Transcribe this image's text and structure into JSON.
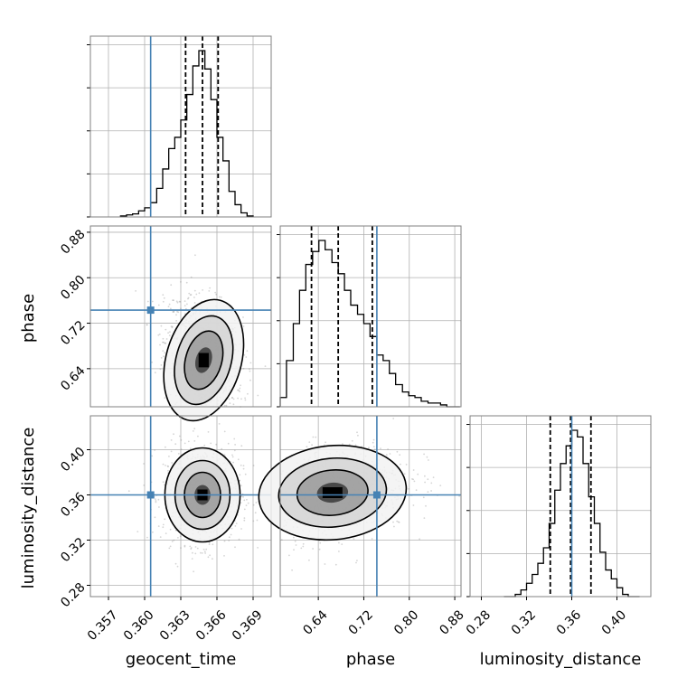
{
  "chart_data": {
    "type": "corner",
    "parameters": [
      "geocent_time",
      "phase",
      "luminosity_distance"
    ],
    "truths": {
      "geocent_time": 0.3605,
      "phase": 0.743,
      "luminosity_distance": 0.36
    },
    "quantiles": {
      "geocent_time": [
        0.3634,
        0.3648,
        0.3661
      ],
      "phase": [
        0.628,
        0.675,
        0.735
      ],
      "luminosity_distance": [
        0.341,
        0.359,
        0.377
      ]
    },
    "colors": {
      "truth": "#4682b4",
      "hist": "#000000",
      "quantile": "#000000",
      "grid": "#b0b0b0"
    },
    "grid": true,
    "axes": {
      "geocent_time": {
        "xlim": [
          0.3555,
          0.3705
        ],
        "ticks": [
          0.357,
          0.36,
          0.363,
          0.366,
          0.369
        ],
        "tick_labels": [
          "0.357",
          "0.360",
          "0.363",
          "0.366",
          "0.369"
        ],
        "label": "geocent_time"
      },
      "phase": {
        "xlim": [
          0.573,
          0.891
        ],
        "ticks": [
          0.64,
          0.72,
          0.8,
          0.88
        ],
        "tick_labels": [
          "0.64",
          "0.72",
          "0.80",
          "0.88"
        ],
        "label": "phase"
      },
      "luminosity_distance": {
        "xlim": [
          0.27,
          0.43
        ],
        "ticks": [
          0.28,
          0.32,
          0.36,
          0.4
        ],
        "tick_labels": [
          "0.28",
          "0.32",
          "0.36",
          "0.40"
        ],
        "label": "luminosity_distance"
      }
    },
    "histograms": {
      "geocent_time": {
        "bin_edges": [
          0.358,
          0.3585,
          0.359,
          0.3595,
          0.36,
          0.3605,
          0.361,
          0.3615,
          0.362,
          0.3625,
          0.363,
          0.3635,
          0.364,
          0.3645,
          0.365,
          0.3655,
          0.366,
          0.3665,
          0.367,
          0.3675,
          0.368,
          0.3685,
          0.369
        ],
        "counts": [
          1,
          2,
          3,
          6,
          9,
          14,
          28,
          47,
          67,
          78,
          95,
          120,
          148,
          163,
          145,
          115,
          78,
          55,
          25,
          12,
          4,
          1
        ]
      },
      "phase": {
        "bin_edges": [
          0.573,
          0.584,
          0.596,
          0.607,
          0.618,
          0.63,
          0.641,
          0.652,
          0.664,
          0.675,
          0.686,
          0.697,
          0.709,
          0.72,
          0.731,
          0.743,
          0.754,
          0.765,
          0.776,
          0.788,
          0.799,
          0.81,
          0.821,
          0.833,
          0.844,
          0.855,
          0.866,
          0.878,
          0.889
        ],
        "counts": [
          5,
          25,
          45,
          63,
          77,
          84,
          90,
          85,
          78,
          72,
          63,
          55,
          50,
          45,
          38,
          28,
          25,
          18,
          12,
          8,
          6,
          5,
          3,
          2,
          2,
          1,
          0,
          0
        ]
      },
      "luminosity_distance": {
        "bin_edges": [
          0.3,
          0.305,
          0.31,
          0.315,
          0.32,
          0.325,
          0.33,
          0.335,
          0.34,
          0.345,
          0.35,
          0.355,
          0.36,
          0.365,
          0.37,
          0.375,
          0.38,
          0.385,
          0.39,
          0.395,
          0.4,
          0.405,
          0.41,
          0.415,
          0.42
        ],
        "counts": [
          0,
          0,
          1,
          3,
          6,
          10,
          15,
          22,
          33,
          48,
          60,
          68,
          75,
          72,
          60,
          45,
          33,
          20,
          12,
          8,
          4,
          1,
          0,
          0
        ]
      }
    },
    "joint": [
      {
        "x": "geocent_time",
        "y": "phase",
        "peak": [
          0.3649,
          0.655
        ],
        "sd": [
          0.0012,
          0.042
        ],
        "rho": -0.3
      },
      {
        "x": "geocent_time",
        "y": "luminosity_distance",
        "peak": [
          0.3648,
          0.36
        ],
        "sd": [
          0.0012,
          0.016
        ],
        "rho": 0.0
      },
      {
        "x": "phase",
        "y": "luminosity_distance",
        "peak": [
          0.665,
          0.362
        ],
        "sd": [
          0.05,
          0.016
        ],
        "rho": 0.25
      }
    ]
  }
}
